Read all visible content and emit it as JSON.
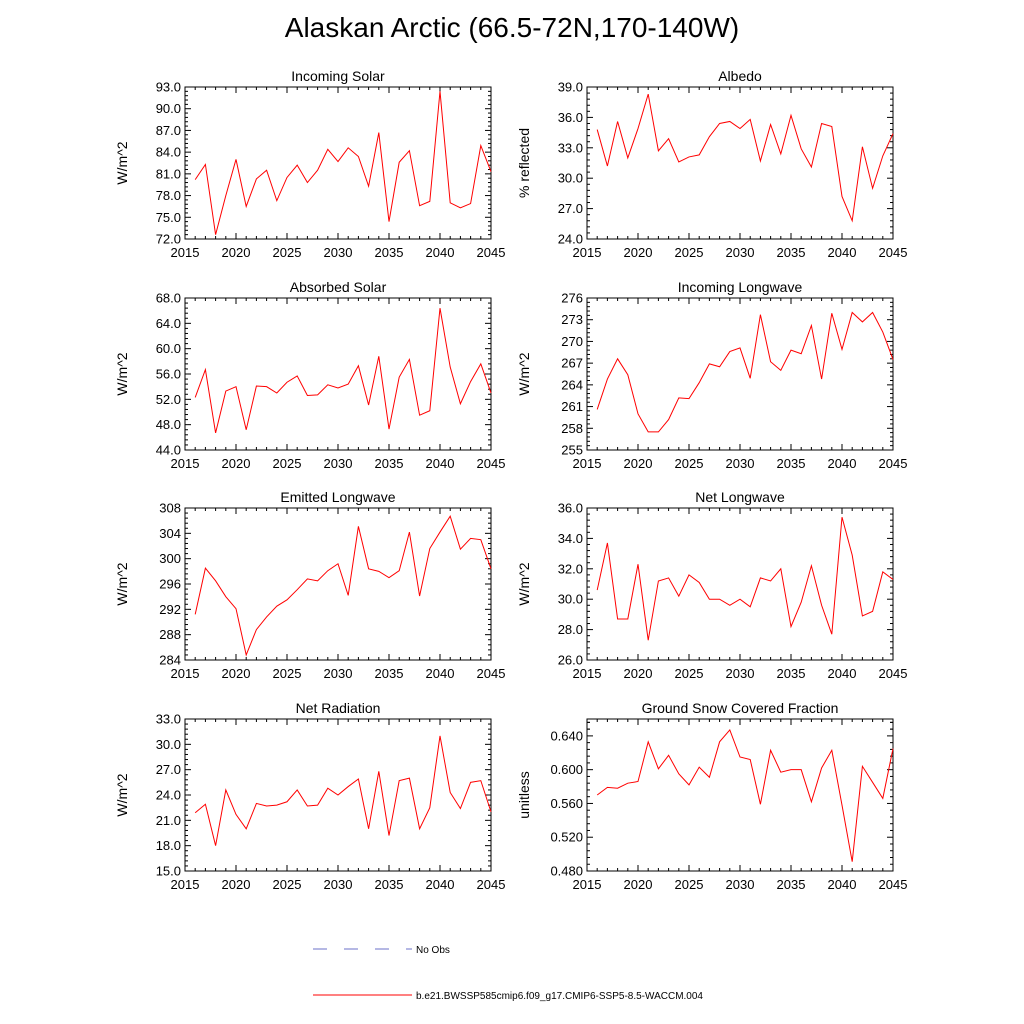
{
  "title": "Alaskan Arctic (66.5-72N,170-140W)",
  "colors": {
    "model": "#ff0000",
    "obs": "#6b72c9",
    "axis": "#000000"
  },
  "legend": {
    "obs_label": "No Obs",
    "model_label": "b.e21.BWSSP585cmip6.f09_g17.CMIP6-SSP5-8.5-WACCM.004"
  },
  "chart_data": [
    {
      "type": "line",
      "title": "Incoming Solar",
      "ylabel": "W/m^2",
      "xlabel": "",
      "xlim": [
        2015,
        2045
      ],
      "ylim": [
        72,
        93
      ],
      "grid": false,
      "xticks": [
        2015,
        2020,
        2025,
        2030,
        2035,
        2040,
        2045
      ],
      "yticks": [
        "72.0",
        "75.0",
        "78.0",
        "81.0",
        "84.0",
        "87.0",
        "90.0",
        "93.0"
      ],
      "x": [
        2016,
        2017,
        2018,
        2019,
        2020,
        2021,
        2022,
        2023,
        2024,
        2025,
        2026,
        2027,
        2028,
        2029,
        2030,
        2031,
        2032,
        2033,
        2034,
        2035,
        2036,
        2037,
        2038,
        2039,
        2040,
        2041,
        2042,
        2043,
        2044,
        2045
      ],
      "values": [
        80.2,
        82.3,
        72.6,
        78.0,
        83.0,
        76.5,
        80.3,
        81.5,
        77.3,
        80.5,
        82.2,
        79.8,
        81.5,
        84.4,
        82.7,
        84.6,
        83.4,
        79.3,
        86.7,
        74.4,
        82.6,
        84.2,
        76.6,
        77.2,
        92.4,
        77.0,
        76.3,
        76.9,
        84.9,
        81.3
      ]
    },
    {
      "type": "line",
      "title": "Albedo",
      "ylabel": "% reflected",
      "xlabel": "",
      "xlim": [
        2015,
        2045
      ],
      "ylim": [
        24,
        39
      ],
      "grid": false,
      "xticks": [
        2015,
        2020,
        2025,
        2030,
        2035,
        2040,
        2045
      ],
      "yticks": [
        "24.0",
        "27.0",
        "30.0",
        "33.0",
        "36.0",
        "39.0"
      ],
      "x": [
        2016,
        2017,
        2018,
        2019,
        2020,
        2021,
        2022,
        2023,
        2024,
        2025,
        2026,
        2027,
        2028,
        2029,
        2030,
        2031,
        2032,
        2033,
        2034,
        2035,
        2036,
        2037,
        2038,
        2039,
        2040,
        2041,
        2042,
        2043,
        2044,
        2045
      ],
      "values": [
        34.8,
        31.2,
        35.6,
        32.0,
        34.9,
        38.3,
        32.7,
        33.9,
        31.6,
        32.1,
        32.3,
        34.1,
        35.4,
        35.6,
        34.9,
        35.8,
        31.7,
        35.3,
        32.4,
        36.2,
        32.9,
        31.1,
        35.4,
        35.1,
        28.2,
        25.8,
        33.1,
        29.0,
        32.2,
        34.4
      ]
    },
    {
      "type": "line",
      "title": "Absorbed Solar",
      "ylabel": "W/m^2",
      "xlabel": "",
      "xlim": [
        2015,
        2045
      ],
      "ylim": [
        44,
        68
      ],
      "grid": false,
      "xticks": [
        2015,
        2020,
        2025,
        2030,
        2035,
        2040,
        2045
      ],
      "yticks": [
        "44.0",
        "48.0",
        "52.0",
        "56.0",
        "60.0",
        "64.0",
        "68.0"
      ],
      "x": [
        2016,
        2017,
        2018,
        2019,
        2020,
        2021,
        2022,
        2023,
        2024,
        2025,
        2026,
        2027,
        2028,
        2029,
        2030,
        2031,
        2032,
        2033,
        2034,
        2035,
        2036,
        2037,
        2038,
        2039,
        2040,
        2041,
        2042,
        2043,
        2044,
        2045
      ],
      "values": [
        52.3,
        56.7,
        46.7,
        53.3,
        54.0,
        47.2,
        54.1,
        54.0,
        53.0,
        54.7,
        55.7,
        52.6,
        52.7,
        54.3,
        53.8,
        54.4,
        57.3,
        51.1,
        58.8,
        47.3,
        55.5,
        58.3,
        49.5,
        50.2,
        66.4,
        57.1,
        51.3,
        54.8,
        57.6,
        53.0
      ]
    },
    {
      "type": "line",
      "title": "Incoming Longwave",
      "ylabel": "W/m^2",
      "xlabel": "",
      "xlim": [
        2015,
        2045
      ],
      "ylim": [
        255,
        276
      ],
      "grid": false,
      "xticks": [
        2015,
        2020,
        2025,
        2030,
        2035,
        2040,
        2045
      ],
      "yticks": [
        "255",
        "258",
        "261",
        "264",
        "267",
        "270",
        "273",
        "276"
      ],
      "x": [
        2016,
        2017,
        2018,
        2019,
        2020,
        2021,
        2022,
        2023,
        2024,
        2025,
        2026,
        2027,
        2028,
        2029,
        2030,
        2031,
        2032,
        2033,
        2034,
        2035,
        2036,
        2037,
        2038,
        2039,
        2040,
        2041,
        2042,
        2043,
        2044,
        2045
      ],
      "values": [
        260.6,
        264.8,
        267.6,
        265.4,
        260.0,
        257.5,
        257.5,
        259.2,
        262.2,
        262.1,
        264.3,
        266.9,
        266.5,
        268.6,
        269.1,
        264.9,
        273.7,
        267.2,
        266.0,
        268.8,
        268.3,
        272.2,
        264.8,
        273.9,
        268.9,
        274.0,
        272.7,
        274.0,
        271.3,
        267.5
      ]
    },
    {
      "type": "line",
      "title": "Emitted Longwave",
      "ylabel": "W/m^2",
      "xlabel": "",
      "xlim": [
        2015,
        2045
      ],
      "ylim": [
        284,
        308
      ],
      "grid": false,
      "xticks": [
        2015,
        2020,
        2025,
        2030,
        2035,
        2040,
        2045
      ],
      "yticks": [
        "284",
        "288",
        "292",
        "296",
        "300",
        "304",
        "308"
      ],
      "x": [
        2016,
        2017,
        2018,
        2019,
        2020,
        2021,
        2022,
        2023,
        2024,
        2025,
        2026,
        2027,
        2028,
        2029,
        2030,
        2031,
        2032,
        2033,
        2034,
        2035,
        2036,
        2037,
        2038,
        2039,
        2040,
        2041,
        2042,
        2043,
        2044,
        2045
      ],
      "values": [
        291.2,
        298.5,
        296.5,
        294.0,
        292.1,
        284.8,
        288.8,
        290.8,
        292.5,
        293.5,
        295.1,
        296.8,
        296.5,
        298.1,
        299.2,
        294.2,
        305.1,
        298.4,
        298.0,
        297.0,
        298.1,
        304.2,
        294.1,
        301.6,
        304.2,
        306.7,
        301.5,
        303.2,
        303.0,
        298.4
      ]
    },
    {
      "type": "line",
      "title": "Net Longwave",
      "ylabel": "W/m^2",
      "xlabel": "",
      "xlim": [
        2015,
        2045
      ],
      "ylim": [
        26,
        36
      ],
      "grid": false,
      "xticks": [
        2015,
        2020,
        2025,
        2030,
        2035,
        2040,
        2045
      ],
      "yticks": [
        "26.0",
        "28.0",
        "30.0",
        "32.0",
        "34.0",
        "36.0"
      ],
      "x": [
        2016,
        2017,
        2018,
        2019,
        2020,
        2021,
        2022,
        2023,
        2024,
        2025,
        2026,
        2027,
        2028,
        2029,
        2030,
        2031,
        2032,
        2033,
        2034,
        2035,
        2036,
        2037,
        2038,
        2039,
        2040,
        2041,
        2042,
        2043,
        2044,
        2045
      ],
      "values": [
        30.6,
        33.7,
        28.7,
        28.7,
        32.3,
        27.3,
        31.2,
        31.4,
        30.2,
        31.6,
        31.1,
        30.0,
        30.0,
        29.6,
        30.0,
        29.5,
        31.4,
        31.2,
        32.0,
        28.2,
        29.8,
        32.2,
        29.6,
        27.7,
        35.4,
        32.9,
        28.9,
        29.2,
        31.8,
        31.3
      ]
    },
    {
      "type": "line",
      "title": "Net Radiation",
      "ylabel": "W/m^2",
      "xlabel": "",
      "xlim": [
        2015,
        2045
      ],
      "ylim": [
        15,
        33
      ],
      "grid": false,
      "xticks": [
        2015,
        2020,
        2025,
        2030,
        2035,
        2040,
        2045
      ],
      "yticks": [
        "15.0",
        "18.0",
        "21.0",
        "24.0",
        "27.0",
        "30.0",
        "33.0"
      ],
      "x": [
        2016,
        2017,
        2018,
        2019,
        2020,
        2021,
        2022,
        2023,
        2024,
        2025,
        2026,
        2027,
        2028,
        2029,
        2030,
        2031,
        2032,
        2033,
        2034,
        2035,
        2036,
        2037,
        2038,
        2039,
        2040,
        2041,
        2042,
        2043,
        2044,
        2045
      ],
      "values": [
        21.9,
        22.9,
        18.0,
        24.6,
        21.7,
        20.0,
        23.0,
        22.7,
        22.8,
        23.2,
        24.6,
        22.7,
        22.8,
        24.8,
        24.0,
        25.0,
        25.9,
        20.0,
        26.8,
        19.2,
        25.7,
        26.0,
        20.0,
        22.5,
        31.0,
        24.3,
        22.4,
        25.5,
        25.7,
        22.0
      ]
    },
    {
      "type": "line",
      "title": "Ground Snow Covered Fraction",
      "ylabel": "unitless",
      "xlabel": "",
      "xlim": [
        2015,
        2045
      ],
      "ylim": [
        0.48,
        0.66
      ],
      "grid": false,
      "xticks": [
        2015,
        2020,
        2025,
        2030,
        2035,
        2040,
        2045
      ],
      "yticks": [
        "0.480",
        "0.520",
        "0.560",
        "0.600",
        "0.640"
      ],
      "x": [
        2016,
        2017,
        2018,
        2019,
        2020,
        2021,
        2022,
        2023,
        2024,
        2025,
        2026,
        2027,
        2028,
        2029,
        2030,
        2031,
        2032,
        2033,
        2034,
        2035,
        2036,
        2037,
        2038,
        2039,
        2040,
        2041,
        2042,
        2043,
        2044,
        2045
      ],
      "values": [
        0.57,
        0.579,
        0.578,
        0.584,
        0.586,
        0.633,
        0.601,
        0.617,
        0.595,
        0.582,
        0.603,
        0.591,
        0.633,
        0.647,
        0.615,
        0.612,
        0.559,
        0.623,
        0.597,
        0.6,
        0.6,
        0.562,
        0.602,
        0.623,
        0.558,
        0.491,
        0.604,
        0.585,
        0.566,
        0.625
      ]
    }
  ]
}
